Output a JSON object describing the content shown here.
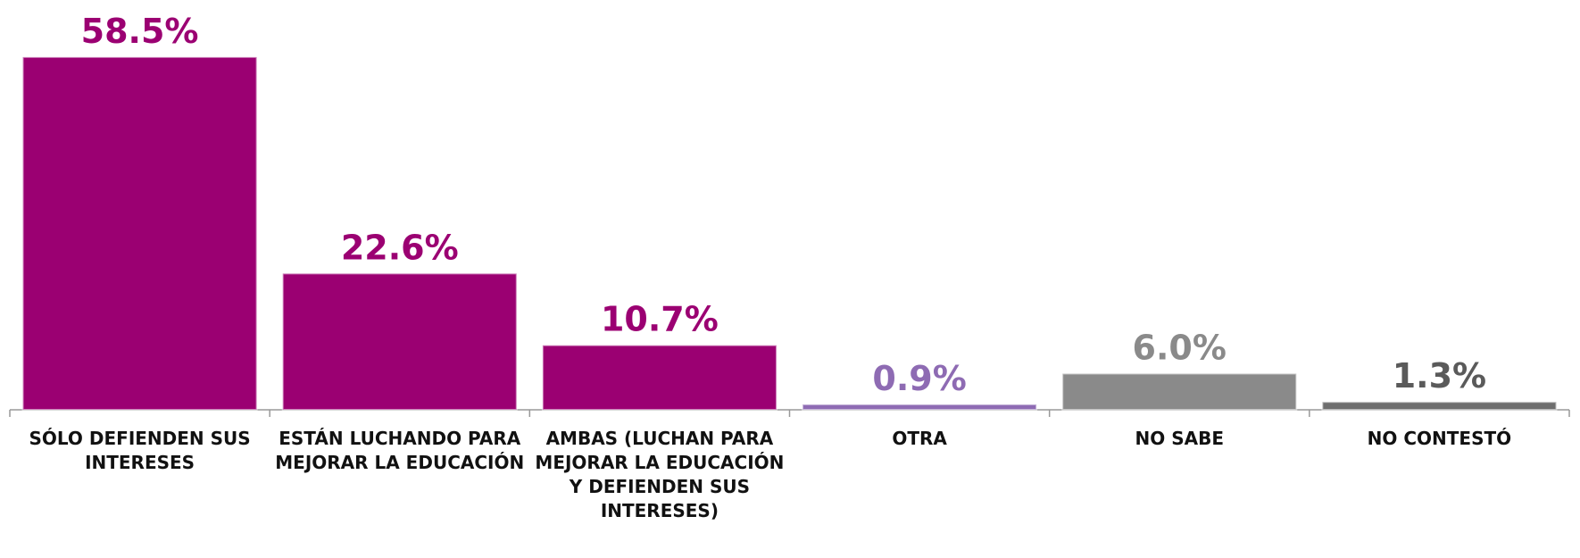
{
  "chart_data": {
    "type": "bar",
    "categories": [
      "SÓLO DEFIENDEN SUS INTERESES",
      "ESTÁN LUCHANDO PARA MEJORAR LA EDUCACIÓN",
      "AMBAS (LUCHAN PARA MEJORAR LA EDUCACIÓN Y DEFIENDEN SUS INTERESES)",
      "OTRA",
      "NO SABE",
      "NO CONTESTÓ"
    ],
    "values": [
      58.5,
      22.6,
      10.7,
      0.9,
      6.0,
      1.3
    ],
    "value_labels": [
      "58.5%",
      "22.6%",
      "10.7%",
      "0.9%",
      "6.0%",
      "1.3%"
    ],
    "colors": [
      "#9b0072",
      "#9b0072",
      "#9b0072",
      "#8e6bb3",
      "#8a8a8a",
      "#6e6e6e"
    ],
    "label_colors": [
      "#9b0072",
      "#9b0072",
      "#9b0072",
      "#8e6bb3",
      "#8a8a8a",
      "#5a5a5a"
    ],
    "ylim": [
      0,
      65
    ]
  }
}
